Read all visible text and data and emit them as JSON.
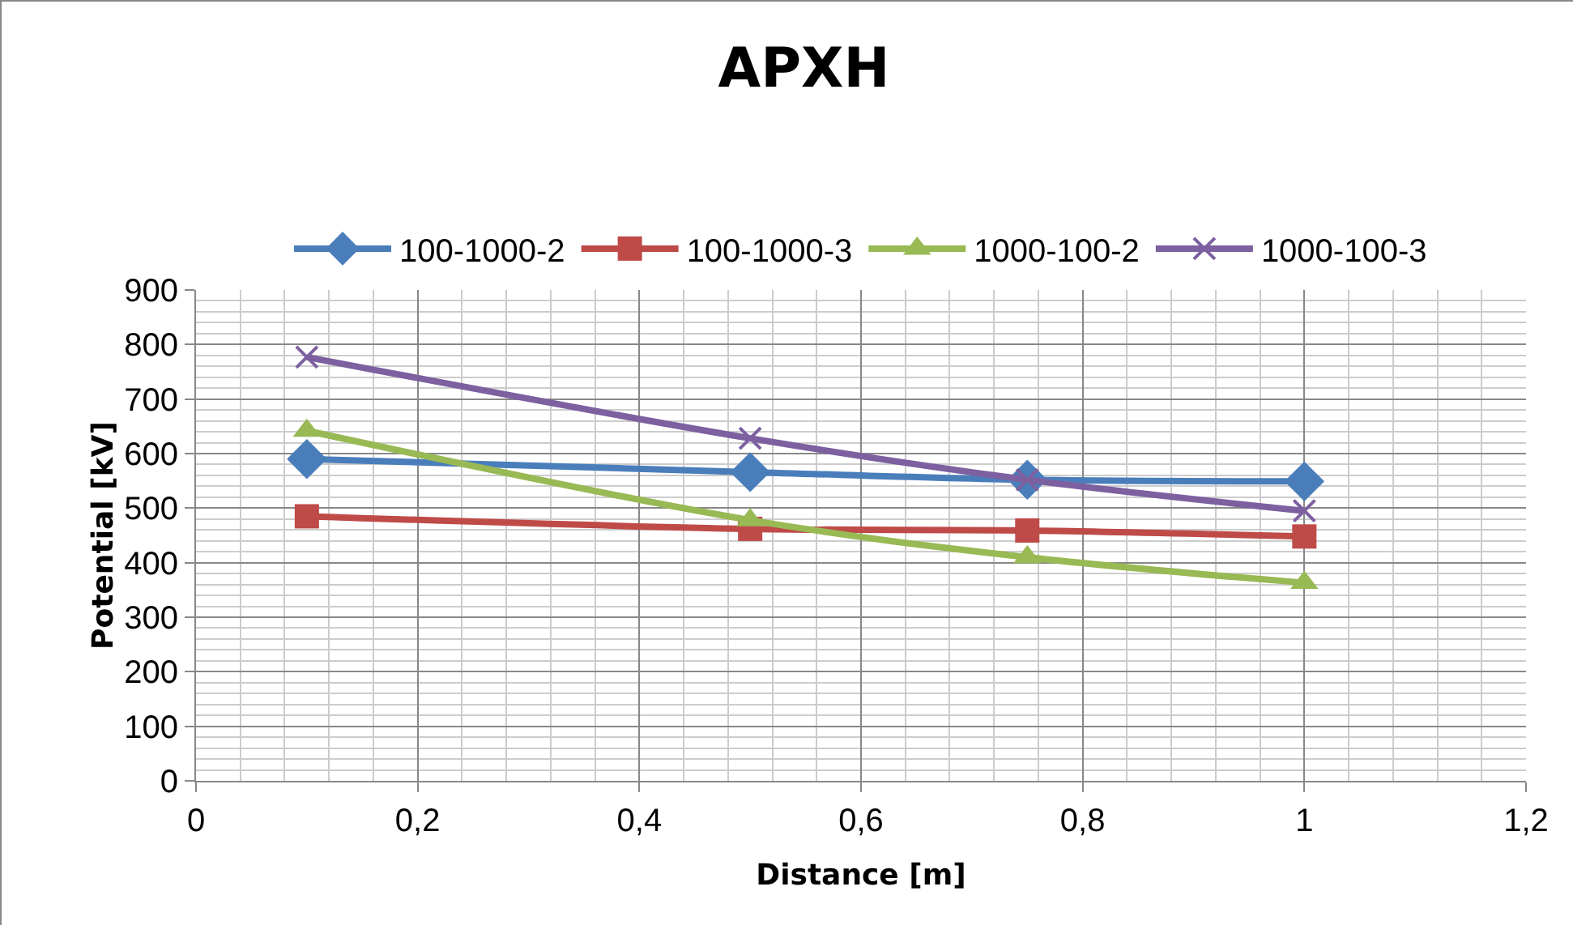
{
  "chart_data": {
    "type": "line",
    "title": "APXH",
    "xlabel": "Distance [m]",
    "ylabel": "Potential [kV]",
    "x": [
      0.1,
      0.5,
      0.75,
      1
    ],
    "series": [
      {
        "name": "100-1000-2",
        "color": "#4a7ebb",
        "marker": "diamond",
        "values": [
          590,
          566,
          552,
          549
        ]
      },
      {
        "name": "100-1000-3",
        "color": "#be4b48",
        "marker": "square",
        "values": [
          485,
          462,
          459,
          448
        ]
      },
      {
        "name": "1000-100-2",
        "color": "#98b954",
        "marker": "triangle",
        "values": [
          642,
          478,
          410,
          363
        ]
      },
      {
        "name": "1000-100-3",
        "color": "#7d60a0",
        "marker": "cross",
        "values": [
          777,
          628,
          552,
          495
        ]
      }
    ],
    "xlim": [
      0,
      1.2
    ],
    "xticks": [
      {
        "value": 0,
        "label": "0"
      },
      {
        "value": 0.2,
        "label": "0,2"
      },
      {
        "value": 0.4,
        "label": "0,4"
      },
      {
        "value": 0.6,
        "label": "0,6"
      },
      {
        "value": 0.8,
        "label": "0,8"
      },
      {
        "value": 1,
        "label": "1"
      },
      {
        "value": 1.2,
        "label": "1,2"
      }
    ],
    "ylim": [
      0,
      900
    ],
    "yticks": [
      0,
      100,
      200,
      300,
      400,
      500,
      600,
      700,
      800,
      900
    ],
    "grid": true,
    "legend": "top",
    "line_style": "solid"
  }
}
